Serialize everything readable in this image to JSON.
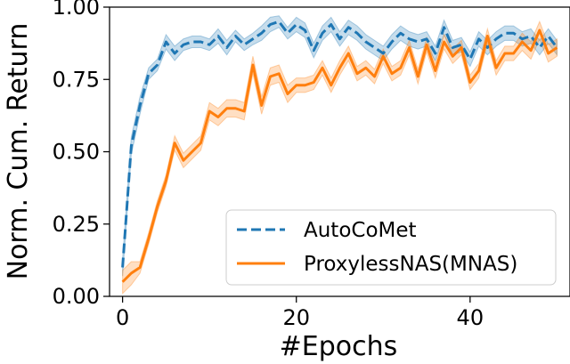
{
  "chart_data": {
    "type": "line",
    "xlabel": "#Epochs",
    "ylabel": "Norm. Cum. Return",
    "xlim": [
      -1.5,
      51.5
    ],
    "ylim": [
      0,
      1
    ],
    "xticks": [
      {
        "value": 0,
        "label": "0"
      },
      {
        "value": 20,
        "label": "20"
      },
      {
        "value": 40,
        "label": "40"
      }
    ],
    "yticks": [
      {
        "value": 0.0,
        "label": "0.00"
      },
      {
        "value": 0.25,
        "label": "0.25"
      },
      {
        "value": 0.5,
        "label": "0.50"
      },
      {
        "value": 0.75,
        "label": "0.75"
      },
      {
        "value": 1.0,
        "label": "1.00"
      }
    ],
    "grid": false,
    "legend": {
      "position": "lower-right"
    },
    "series": [
      {
        "name": "AutoCoMet",
        "color": "#1f77b4",
        "linestyle": "dashed",
        "x": [
          0,
          1,
          2,
          3,
          4,
          5,
          6,
          7,
          8,
          9,
          10,
          11,
          12,
          13,
          14,
          15,
          16,
          17,
          18,
          19,
          20,
          21,
          22,
          23,
          24,
          25,
          26,
          27,
          28,
          29,
          30,
          31,
          32,
          33,
          34,
          35,
          36,
          37,
          38,
          39,
          40,
          41,
          42,
          43,
          44,
          45,
          46,
          47,
          48,
          49,
          50
        ],
        "y": [
          0.1,
          0.52,
          0.66,
          0.77,
          0.8,
          0.88,
          0.84,
          0.87,
          0.88,
          0.88,
          0.87,
          0.9,
          0.86,
          0.9,
          0.87,
          0.89,
          0.91,
          0.94,
          0.95,
          0.91,
          0.94,
          0.92,
          0.85,
          0.91,
          0.94,
          0.89,
          0.93,
          0.91,
          0.88,
          0.86,
          0.84,
          0.88,
          0.91,
          0.89,
          0.88,
          0.89,
          0.84,
          0.93,
          0.86,
          0.87,
          0.82,
          0.89,
          0.86,
          0.89,
          0.91,
          0.91,
          0.89,
          0.9,
          0.86,
          0.9,
          0.86
        ],
        "band": [
          0.03,
          0.03,
          0.03,
          0.02,
          0.02,
          0.025,
          0.025,
          0.02,
          0.02,
          0.02,
          0.02,
          0.025,
          0.025,
          0.02,
          0.02,
          0.02,
          0.025,
          0.025,
          0.02,
          0.02,
          0.025,
          0.025,
          0.025,
          0.025,
          0.025,
          0.025,
          0.025,
          0.025,
          0.025,
          0.025,
          0.025,
          0.025,
          0.025,
          0.025,
          0.025,
          0.025,
          0.025,
          0.025,
          0.025,
          0.025,
          0.025,
          0.025,
          0.025,
          0.025,
          0.025,
          0.025,
          0.025,
          0.025,
          0.025,
          0.025,
          0.025
        ]
      },
      {
        "name": "ProxylessNAS(MNAS)",
        "color": "#ff7f0e",
        "linestyle": "solid",
        "x": [
          0,
          1,
          2,
          3,
          4,
          5,
          6,
          7,
          8,
          9,
          10,
          11,
          12,
          13,
          14,
          15,
          16,
          17,
          18,
          19,
          20,
          21,
          22,
          23,
          24,
          25,
          26,
          27,
          28,
          29,
          30,
          31,
          32,
          33,
          34,
          35,
          36,
          37,
          38,
          39,
          40,
          41,
          42,
          43,
          44,
          45,
          46,
          47,
          48,
          49,
          50
        ],
        "y": [
          0.05,
          0.08,
          0.1,
          0.2,
          0.31,
          0.4,
          0.53,
          0.47,
          0.5,
          0.53,
          0.64,
          0.62,
          0.65,
          0.65,
          0.64,
          0.8,
          0.66,
          0.76,
          0.77,
          0.7,
          0.73,
          0.73,
          0.74,
          0.79,
          0.73,
          0.79,
          0.84,
          0.77,
          0.79,
          0.76,
          0.83,
          0.77,
          0.79,
          0.86,
          0.76,
          0.87,
          0.78,
          0.88,
          0.83,
          0.86,
          0.74,
          0.78,
          0.9,
          0.79,
          0.84,
          0.84,
          0.88,
          0.85,
          0.92,
          0.84,
          0.86
        ],
        "band": [
          0.04,
          0.04,
          0.02,
          0.02,
          0.02,
          0.02,
          0.025,
          0.025,
          0.025,
          0.025,
          0.03,
          0.03,
          0.03,
          0.03,
          0.03,
          0.03,
          0.03,
          0.03,
          0.03,
          0.03,
          0.025,
          0.025,
          0.025,
          0.025,
          0.025,
          0.025,
          0.025,
          0.025,
          0.025,
          0.025,
          0.025,
          0.025,
          0.025,
          0.025,
          0.025,
          0.025,
          0.025,
          0.025,
          0.025,
          0.025,
          0.025,
          0.025,
          0.025,
          0.025,
          0.025,
          0.025,
          0.03,
          0.03,
          0.03,
          0.03,
          0.03
        ]
      }
    ]
  }
}
